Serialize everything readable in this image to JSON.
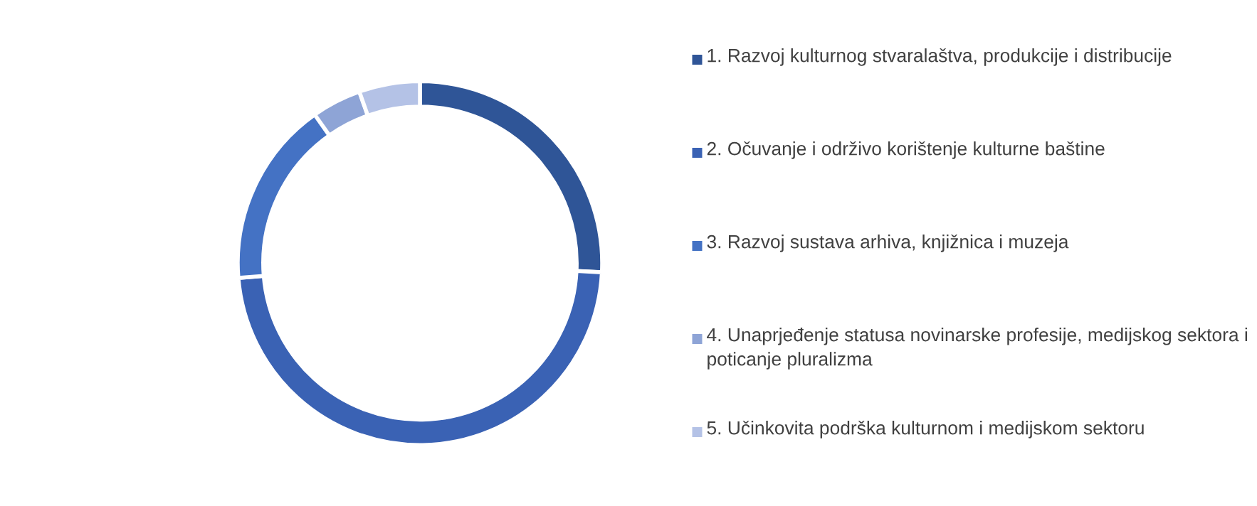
{
  "chart_data": {
    "type": "donut",
    "categories": [
      "1. Razvoj kulturnog stvaralaštva, produkcije i distribucije",
      "2. Očuvanje i održivo korištenje kulturne baštine",
      "3. Razvoj sustava arhiva, knjižnica i muzeja",
      "4. Unaprjeđenje statusa novinarske profesije, medijskog sektora i poticanje pluralizma",
      "5. Učinkovita podrška kulturnom i medijskom sektoru"
    ],
    "values": [
      25.8,
      47.9,
      16.5,
      4.4,
      5.4
    ],
    "colors": [
      "#2f5597",
      "#3a62b4",
      "#4472c4",
      "#8ea4d6",
      "#b4c2e6"
    ],
    "legend": "right"
  }
}
